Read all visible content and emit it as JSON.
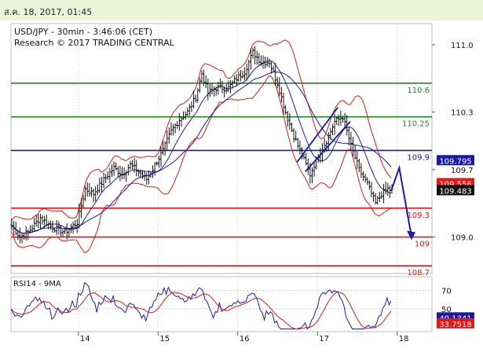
{
  "header": {
    "timestamp": "ส.ค. 18, 2017, 01:45"
  },
  "chart_data": {
    "type": "candlestick",
    "title": "USD/JPY - 30min - 3:46:06 (CET)",
    "subtitle": "Research © 2017 TRADING CENTRAL",
    "ylim": [
      108.62,
      111.22
    ],
    "yticks": [
      "111.0",
      "110.3",
      "109.7",
      "109.0"
    ],
    "xticks": [
      "14",
      "15",
      "16",
      "17",
      "18"
    ],
    "levels": [
      {
        "label": "110.6",
        "value": 110.6,
        "color": "#1f8a1f"
      },
      {
        "label": "110.25",
        "value": 110.25,
        "color": "#1f8a1f"
      },
      {
        "label": "109.9",
        "value": 109.9,
        "color": "#1a1aa8"
      },
      {
        "label": "109.3",
        "value": 109.3,
        "color": "#e01818"
      },
      {
        "label": "109",
        "value": 109.0,
        "color": "#e01818"
      },
      {
        "label": "108.7",
        "value": 108.7,
        "color": "#e01818"
      }
    ],
    "price_tags": [
      {
        "label": "109.795",
        "value": 109.795,
        "color": "#1a1aa8"
      },
      {
        "label": "109.556",
        "value": 109.556,
        "color": "#e01818"
      },
      {
        "label": "109.483",
        "value": 109.483,
        "color": "#111111"
      }
    ],
    "price_path": [
      [
        0,
        109.12
      ],
      [
        4,
        109.0
      ],
      [
        8,
        109.05
      ],
      [
        14,
        109.2
      ],
      [
        20,
        109.1
      ],
      [
        26,
        109.05
      ],
      [
        32,
        109.15
      ],
      [
        36,
        109.5
      ],
      [
        40,
        109.45
      ],
      [
        46,
        109.62
      ],
      [
        50,
        109.72
      ],
      [
        54,
        109.65
      ],
      [
        58,
        109.75
      ],
      [
        62,
        109.68
      ],
      [
        66,
        109.6
      ],
      [
        70,
        109.75
      ],
      [
        74,
        109.9
      ],
      [
        78,
        110.1
      ],
      [
        82,
        110.22
      ],
      [
        86,
        110.3
      ],
      [
        90,
        110.45
      ],
      [
        93,
        110.7
      ],
      [
        96,
        110.5
      ],
      [
        100,
        110.55
      ],
      [
        106,
        110.55
      ],
      [
        110,
        110.65
      ],
      [
        114,
        110.72
      ],
      [
        118,
        110.92
      ],
      [
        122,
        110.82
      ],
      [
        126,
        110.82
      ],
      [
        130,
        110.6
      ],
      [
        134,
        110.3
      ],
      [
        138,
        110.05
      ],
      [
        142,
        109.85
      ],
      [
        146,
        109.65
      ],
      [
        150,
        109.85
      ],
      [
        154,
        110.0
      ],
      [
        158,
        110.2
      ],
      [
        162,
        110.25
      ],
      [
        166,
        109.95
      ],
      [
        170,
        109.7
      ],
      [
        174,
        109.55
      ],
      [
        178,
        109.35
      ],
      [
        181,
        109.45
      ],
      [
        184,
        109.5
      ],
      [
        186,
        109.48
      ]
    ],
    "channel_lines": [
      {
        "x": [
          140,
          160
        ],
        "y": [
          109.78,
          110.35
        ]
      },
      {
        "x": [
          144,
          166
        ],
        "y": [
          109.68,
          110.2
        ]
      }
    ],
    "projection": {
      "x": [
        186,
        190,
        196
      ],
      "y": [
        109.48,
        109.72,
        109.0
      ]
    },
    "rsi": {
      "label": "RSI14 - 9MA",
      "ylim": [
        25,
        85
      ],
      "yticks": [
        "70",
        "50"
      ],
      "value_tags": [
        {
          "label": "40.1341",
          "value": 40.1341,
          "color": "#1a1aa8"
        },
        {
          "label": "33.7518",
          "value": 33.7518,
          "color": "#e01818"
        }
      ]
    }
  }
}
